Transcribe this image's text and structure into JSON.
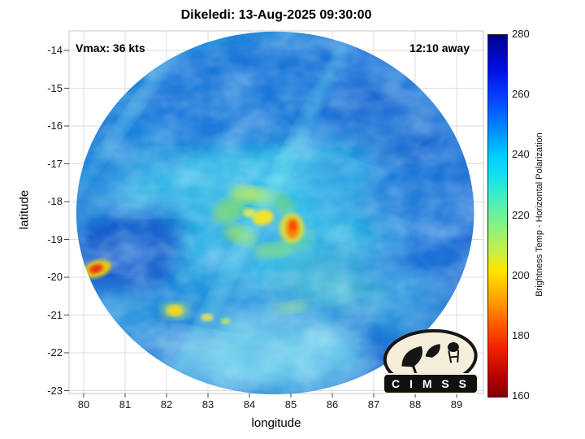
{
  "figure": {
    "title": "Dikeledi: 13-Aug-2025 09:30:00",
    "vmax_label": "Vmax: 36 kts",
    "eta_label": "12:10 away"
  },
  "axes": {
    "xlabel": "longitude",
    "ylabel": "latitude",
    "x_ticks": [
      80,
      81,
      82,
      83,
      84,
      85,
      86,
      87,
      88,
      89
    ],
    "y_ticks": [
      -14,
      -15,
      -16,
      -17,
      -18,
      -19,
      -20,
      -21,
      -22,
      -23
    ]
  },
  "colorbar": {
    "label": "Brightness Temp - Horizontal Polarization",
    "min": 160,
    "max": 280,
    "ticks": [
      280,
      260,
      240,
      220,
      200,
      180,
      160
    ],
    "colormap": [
      {
        "bt": 280,
        "color": "#00008b"
      },
      {
        "bt": 268,
        "color": "#0010e6"
      },
      {
        "bt": 258,
        "color": "#0848ff"
      },
      {
        "bt": 248,
        "color": "#0090ff"
      },
      {
        "bt": 240,
        "color": "#00ccff"
      },
      {
        "bt": 232,
        "color": "#18e4e8"
      },
      {
        "bt": 224,
        "color": "#52f0b4"
      },
      {
        "bt": 216,
        "color": "#8cf27c"
      },
      {
        "bt": 208,
        "color": "#c8f046"
      },
      {
        "bt": 202,
        "color": "#ffe600"
      },
      {
        "bt": 192,
        "color": "#ffa000"
      },
      {
        "bt": 184,
        "color": "#ff5a00"
      },
      {
        "bt": 176,
        "color": "#f02000"
      },
      {
        "bt": 166,
        "color": "#b40000"
      },
      {
        "bt": 160,
        "color": "#800000"
      }
    ]
  },
  "logo": {
    "text": "C I M S S"
  },
  "chart_data": {
    "type": "heatmap",
    "title": "Dikeledi: 13-Aug-2025 09:30:00",
    "xlabel": "longitude",
    "ylabel": "latitude",
    "x_range": [
      79.6,
      89.6
    ],
    "y_range": [
      -23.1,
      -13.5
    ],
    "grid": true,
    "legend_position": "right-colorbar",
    "colorbar_label": "Brightness Temp - Horizontal Polarization",
    "value_range": [
      160,
      280
    ],
    "storm": {
      "name": "Dikeledi",
      "datetime": "13-Aug-2025 09:30:00",
      "vmax_kts": 36,
      "pass_offset": "12:10 away"
    },
    "swath": {
      "center_lon": 84.62,
      "center_lat": -18.3,
      "radius_deg": 4.8,
      "background_bt": 248
    },
    "feature_fields": [
      "lon",
      "lat",
      "rx_deg",
      "ry_deg",
      "rot_deg",
      "color",
      "opacity",
      "bt_estimate"
    ],
    "texture_regions": [
      [
        84.6,
        -15.1,
        3.4,
        1.4,
        -5,
        "#1160d4",
        0.7,
        258
      ],
      [
        81.6,
        -16.2,
        1.7,
        1.1,
        -20,
        "#1a74da",
        0.55,
        254
      ],
      [
        88.2,
        -18.0,
        1.4,
        2.0,
        0,
        "#1566d6",
        0.6,
        257
      ],
      [
        87.3,
        -15.9,
        1.5,
        1.0,
        20,
        "#0f58cc",
        0.6,
        260
      ],
      [
        81.05,
        -19.4,
        1.25,
        1.15,
        -15,
        "#0c4ec6",
        0.8,
        262
      ],
      [
        82.0,
        -18.6,
        0.6,
        0.8,
        0,
        "#1055c8",
        0.6,
        260
      ],
      [
        81.9,
        -17.5,
        1.1,
        0.8,
        0,
        "#45d4ec",
        0.55,
        241
      ],
      [
        84.8,
        -21.9,
        1.9,
        1.0,
        0,
        "#8feaf2",
        0.7,
        234
      ],
      [
        83.0,
        -22.2,
        1.3,
        0.7,
        10,
        "#a8eef4",
        0.55,
        232
      ],
      [
        84.2,
        -18.4,
        2.0,
        1.6,
        0,
        "#38c8e8",
        0.45,
        241
      ],
      [
        85.6,
        -20.0,
        1.1,
        0.7,
        -10,
        "#62dfc6",
        0.4,
        236
      ],
      [
        86.5,
        -20.4,
        0.8,
        0.5,
        0,
        "#74e2cc",
        0.4,
        236
      ],
      [
        86.9,
        -18.8,
        0.9,
        0.5,
        15,
        "#3ecee8",
        0.35,
        242
      ],
      [
        84.6,
        -22.4,
        2.4,
        0.8,
        0,
        "#6adcf0",
        0.45,
        238
      ],
      [
        80.7,
        -21.2,
        1.1,
        1.0,
        0,
        "#52d8ee",
        0.4,
        240
      ],
      [
        87.8,
        -20.8,
        0.9,
        0.9,
        0,
        "#4fd4ec",
        0.35,
        240
      ]
    ],
    "banding_arcs": [
      [
        84.05,
        -17.82,
        0.52,
        0.22,
        8,
        "#c6ec54",
        0.75,
        217
      ],
      [
        83.52,
        -18.22,
        0.42,
        0.3,
        -25,
        "#8ee068",
        0.7,
        223
      ],
      [
        84.78,
        -18.02,
        0.34,
        0.24,
        35,
        "#7eda74",
        0.6,
        226
      ],
      [
        83.78,
        -18.88,
        0.4,
        0.24,
        18,
        "#a6e65c",
        0.7,
        220
      ],
      [
        84.6,
        -19.28,
        0.5,
        0.2,
        -6,
        "#90e26e",
        0.6,
        224
      ],
      [
        85.25,
        -19.0,
        0.3,
        0.3,
        0,
        "#6cdb9a",
        0.5,
        229
      ],
      [
        85.0,
        -20.8,
        0.45,
        0.15,
        -8,
        "#9ce87c",
        0.45,
        228
      ],
      [
        82.2,
        -20.88,
        0.34,
        0.22,
        0,
        "#b2ea5c",
        0.6,
        218
      ],
      [
        84.1,
        -18.6,
        5.4,
        0.22,
        -63,
        "#82e8f0",
        0.3,
        null
      ],
      [
        81.0,
        -15.9,
        2.2,
        0.18,
        -55,
        "#82e8f0",
        0.25,
        null
      ]
    ],
    "hotspots": [
      [
        85.02,
        -18.7,
        0.3,
        0.4,
        0,
        "#ffe31e",
        0.75,
        203
      ],
      [
        85.04,
        -18.7,
        0.16,
        0.27,
        0,
        "#ff7a00",
        0.95,
        190
      ],
      [
        85.05,
        -18.64,
        0.08,
        0.13,
        0,
        "#f23c00",
        0.9,
        181
      ],
      [
        84.33,
        -18.42,
        0.26,
        0.2,
        -10,
        "#ffe51c",
        0.92,
        206
      ],
      [
        84.0,
        -18.3,
        0.16,
        0.12,
        0,
        "#f4ef52",
        0.85,
        211
      ],
      [
        80.32,
        -19.78,
        0.36,
        0.22,
        -18,
        "#ffd400",
        0.85,
        200
      ],
      [
        80.3,
        -19.78,
        0.17,
        0.11,
        -18,
        "#ea2c0e",
        0.95,
        172
      ],
      [
        82.2,
        -20.88,
        0.2,
        0.14,
        0,
        "#ffd916",
        0.9,
        206
      ],
      [
        82.98,
        -21.06,
        0.15,
        0.1,
        0,
        "#ffe647",
        0.85,
        210
      ],
      [
        83.42,
        -21.16,
        0.12,
        0.08,
        0,
        "#cdec4e",
        0.8,
        217
      ]
    ]
  }
}
